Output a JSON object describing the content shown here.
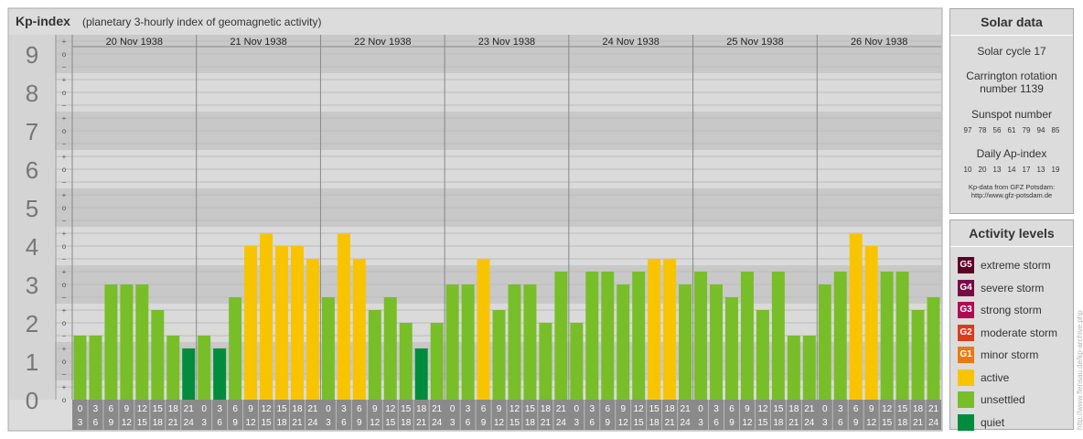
{
  "header": {
    "title": "Kp-index",
    "subtitle": "(planetary 3-hourly index of geomagnetic activity)"
  },
  "chart_data": {
    "type": "bar",
    "ylim": [
      0,
      9
    ],
    "y_ticks": [
      "0",
      "1",
      "2",
      "3",
      "4",
      "5",
      "6",
      "7",
      "8",
      "9"
    ],
    "sub_ticks": [
      "o",
      "+",
      "−"
    ],
    "days": [
      "20 Nov 1938",
      "21 Nov 1938",
      "22 Nov 1938",
      "23 Nov 1938",
      "24 Nov 1938",
      "25 Nov 1938",
      "26 Nov 1938"
    ],
    "interval_starts": [
      "0",
      "3",
      "6",
      "9",
      "12",
      "15",
      "18",
      "21"
    ],
    "interval_ends": [
      "3",
      "6",
      "9",
      "12",
      "15",
      "18",
      "21",
      "24"
    ],
    "values": [
      [
        1.667,
        1.667,
        3.0,
        3.0,
        3.0,
        2.333,
        1.667,
        1.333
      ],
      [
        1.667,
        1.333,
        2.667,
        4.0,
        4.333,
        4.0,
        4.0,
        3.667
      ],
      [
        2.667,
        4.333,
        3.667,
        2.333,
        2.667,
        2.0,
        1.333,
        2.0
      ],
      [
        3.0,
        3.0,
        3.667,
        2.333,
        3.0,
        3.0,
        2.0,
        3.333
      ],
      [
        2.0,
        3.333,
        3.333,
        3.0,
        3.333,
        3.667,
        3.667,
        3.0
      ],
      [
        3.333,
        3.0,
        2.667,
        3.333,
        2.333,
        3.333,
        1.667,
        1.667
      ],
      [
        3.0,
        3.333,
        4.333,
        4.0,
        3.333,
        3.333,
        2.333,
        2.667
      ]
    ],
    "colors": {
      "quiet": "#008c3c",
      "unsettled": "#78be28",
      "active": "#f8c400"
    }
  },
  "solar": {
    "title": "Solar data",
    "cycle": "Solar cycle 17",
    "carrington_line1": "Carrington rotation",
    "carrington_line2": "number 1139",
    "sunspot_title": "Sunspot number",
    "sunspot_values": [
      "97",
      "78",
      "56",
      "61",
      "79",
      "94",
      "85"
    ],
    "ap_title": "Daily Ap-index",
    "ap_values": [
      "10",
      "20",
      "13",
      "14",
      "17",
      "13",
      "19"
    ],
    "credit_line1": "Kp-data from GFZ Potsdam:",
    "credit_line2": "http://www.gfz-potsdam.de"
  },
  "activity": {
    "title": "Activity levels",
    "levels": [
      {
        "code": "G5",
        "label": "extreme storm",
        "color": "#5a0025"
      },
      {
        "code": "G4",
        "label": "severe storm",
        "color": "#7a0a45"
      },
      {
        "code": "G3",
        "label": "strong storm",
        "color": "#b00a55"
      },
      {
        "code": "G2",
        "label": "moderate storm",
        "color": "#d83c1e"
      },
      {
        "code": "G1",
        "label": "minor storm",
        "color": "#e87a14"
      },
      {
        "code": "",
        "label": "active",
        "color": "#f8c400"
      },
      {
        "code": "",
        "label": "unsettled",
        "color": "#78be28"
      },
      {
        "code": "",
        "label": "quiet",
        "color": "#008c3c"
      }
    ]
  },
  "watermark": "http://www.flensau.de/kp-archive.php"
}
